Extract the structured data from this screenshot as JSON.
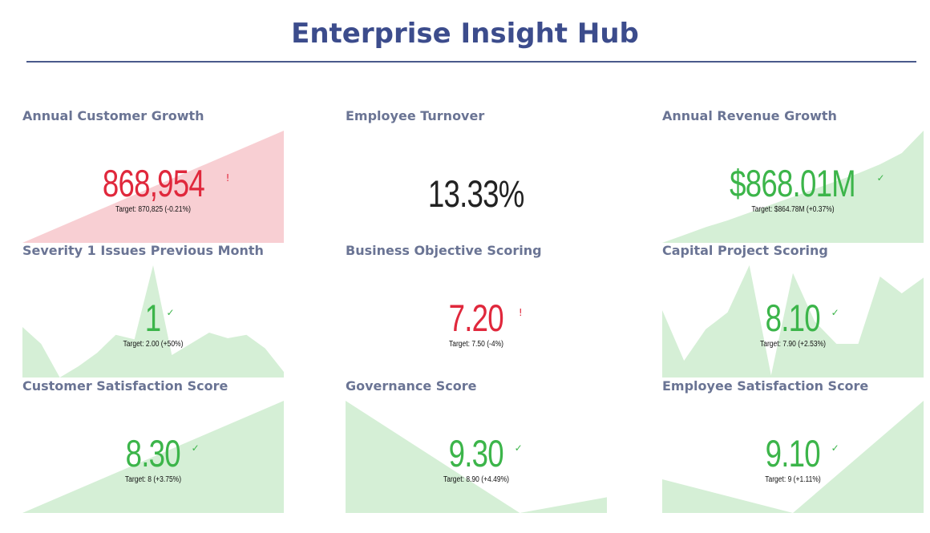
{
  "page": {
    "title": "Enterprise Insight Hub"
  },
  "colors": {
    "title": "#3c4c8c",
    "card_title": "#6a7494",
    "good": "#3cb54a",
    "bad": "#e0283c",
    "neutral": "#222222",
    "good_area": "#d5efd6",
    "bad_area": "#f8cfd3"
  },
  "cards": [
    {
      "title": "Annual Customer Growth",
      "value": "868,954",
      "status": "bad",
      "status_icon": "exclamation-icon",
      "status_glyph": "!",
      "target": "Target: 870,825 (-0.21%)",
      "trend": [
        0,
        1
      ]
    },
    {
      "title": "Employee Turnover",
      "value": "13.33%",
      "status": "neutral",
      "status_icon": "",
      "status_glyph": "",
      "target": "",
      "trend": []
    },
    {
      "title": "Annual Revenue Growth",
      "value": "$868.01M",
      "status": "good",
      "status_icon": "checkmark-icon",
      "status_glyph": "✓",
      "target": "Target: $864.78M (+0.37%)",
      "trend": [
        0,
        0.07,
        0.14,
        0.2,
        0.27,
        0.34,
        0.41,
        0.48,
        0.55,
        0.62,
        0.7,
        0.8,
        1
      ]
    },
    {
      "title": "Severity 1 Issues Previous Month",
      "value": "1",
      "status": "good",
      "status_icon": "checkmark-icon",
      "status_glyph": "✓",
      "target": "Target: 2.00 (+50%)",
      "trend": [
        0.45,
        0.3,
        0,
        0.1,
        0.22,
        0.38,
        0.34,
        1,
        0.2,
        0.3,
        0.4,
        0.35,
        0.38,
        0.26,
        0.05
      ]
    },
    {
      "title": "Business Objective Scoring",
      "value": "7.20",
      "status": "bad",
      "status_icon": "exclamation-icon",
      "status_glyph": "!",
      "target": "Target: 7.50 (-4%)",
      "trend": []
    },
    {
      "title": "Capital Project Scoring",
      "value": "8.10",
      "status": "good",
      "status_icon": "checkmark-icon",
      "status_glyph": "✓",
      "target": "Target: 7.90 (+2.53%)",
      "trend": [
        0.6,
        0.15,
        0.43,
        0.58,
        1,
        0.02,
        0.93,
        0.5,
        0.3,
        0.3,
        0.9,
        0.75,
        0.89
      ]
    },
    {
      "title": "Customer Satisfaction Score",
      "value": "8.30",
      "status": "good",
      "status_icon": "checkmark-icon",
      "status_glyph": "✓",
      "target": "Target: 8 (+3.75%)",
      "trend": [
        0,
        0.1,
        0.2,
        0.3,
        0.4,
        0.5,
        0.6,
        0.7,
        0.8,
        0.9,
        1
      ]
    },
    {
      "title": "Governance Score",
      "value": "9.30",
      "status": "good",
      "status_icon": "checkmark-icon",
      "status_glyph": "✓",
      "target": "Target: 8.90 (+4.49%)",
      "trend": [
        1,
        0.5,
        0,
        0.14
      ]
    },
    {
      "title": "Employee Satisfaction Score",
      "value": "9.10",
      "status": "good",
      "status_icon": "checkmark-icon",
      "status_glyph": "✓",
      "target": "Target: 9 (+1.11%)",
      "trend": [
        0.3,
        0.15,
        0,
        0.5,
        1
      ]
    }
  ]
}
